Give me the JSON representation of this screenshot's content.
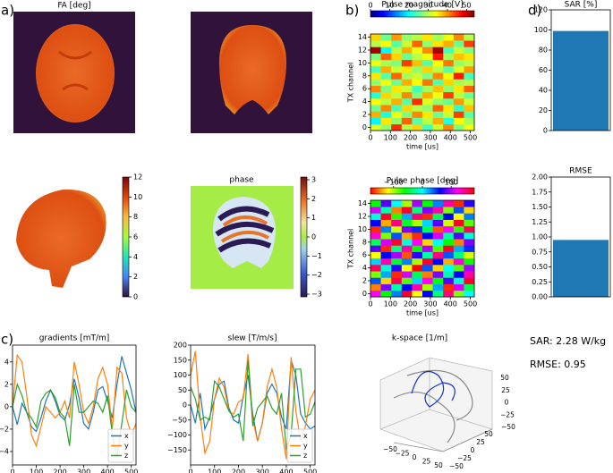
{
  "panel_labels": [
    "a)",
    "b)",
    "c)",
    "d)"
  ],
  "annotations": [
    "SAR:  2.28 W/kg",
    "RMSE:  0.95"
  ],
  "chart_data": [
    {
      "type": "image",
      "title": "FA [deg]",
      "colorbar_lim": [
        0,
        12
      ],
      "colorbar_ticks": [
        0,
        2,
        4,
        6,
        8,
        10,
        12
      ],
      "colormap": "turbo"
    },
    {
      "type": "image",
      "title": "phase",
      "colorbar_lim": [
        -3.14,
        3.14
      ],
      "colormap": "phase",
      "colorbar_ticks": [
        {
          "value": -3,
          "label": "−3"
        },
        {
          "value": -2,
          "label": "−2"
        },
        {
          "value": -1,
          "label": "−1"
        },
        0,
        1,
        2,
        3
      ]
    },
    {
      "type": "heatmap",
      "title": "Pulse magnitude [V]",
      "xlabel": "time [us]",
      "ylabel": "TX channel",
      "colormap": "jet",
      "colorbar_lim": [
        0,
        54
      ],
      "colorbar_ticks": [
        0,
        10,
        20,
        30,
        40,
        50
      ],
      "xlim": [
        0,
        520
      ],
      "xticks": [
        0,
        100,
        200,
        300,
        400,
        500
      ],
      "ylim": [
        -0.5,
        14.5
      ],
      "yticks": [
        0,
        2,
        4,
        6,
        8,
        10,
        12,
        14
      ],
      "values": [
        [
          32,
          28,
          45,
          30,
          36,
          24,
          31,
          40,
          27,
          33
        ],
        [
          20,
          35,
          28,
          42,
          25,
          30,
          38,
          22,
          34,
          29
        ],
        [
          38,
          22,
          33,
          27,
          40,
          35,
          26,
          31,
          44,
          25
        ],
        [
          26,
          40,
          24,
          36,
          30,
          28,
          42,
          35,
          23,
          37
        ],
        [
          34,
          30,
          38,
          25,
          45,
          32,
          28,
          26,
          39,
          31
        ],
        [
          22,
          36,
          30,
          40,
          27,
          38,
          33,
          44,
          30,
          26
        ],
        [
          40,
          27,
          35,
          31,
          24,
          29,
          37,
          28,
          35,
          42
        ],
        [
          28,
          33,
          26,
          38,
          34,
          41,
          25,
          36,
          29,
          30
        ],
        [
          35,
          25,
          42,
          29,
          31,
          27,
          40,
          33,
          46,
          24
        ],
        [
          24,
          38,
          31,
          35,
          28,
          36,
          30,
          25,
          32,
          39
        ],
        [
          33,
          29,
          27,
          44,
          37,
          25,
          34,
          41,
          28,
          30
        ],
        [
          27,
          42,
          36,
          26,
          30,
          33,
          46,
          29,
          37,
          35
        ],
        [
          52,
          20,
          30,
          38,
          33,
          40,
          52,
          24,
          31,
          27
        ],
        [
          30,
          34,
          25,
          31,
          42,
          28,
          35,
          38,
          26,
          44
        ],
        [
          36,
          26,
          39,
          28,
          30,
          35,
          29,
          33,
          40,
          30
        ]
      ]
    },
    {
      "type": "heatmap",
      "title": "Pulse phase [deg]",
      "xlabel": "time [us]",
      "ylabel": "TX channel",
      "colormap": "hsv",
      "colorbar_lim": [
        -180,
        180
      ],
      "colorbar_ticks": [
        {
          "value": -100,
          "label": "−100"
        },
        0,
        100
      ],
      "xlim": [
        0,
        520
      ],
      "xticks": [
        0,
        100,
        200,
        300,
        400,
        500
      ],
      "ylim": [
        -0.5,
        14.5
      ],
      "yticks": [
        0,
        2,
        4,
        6,
        8,
        10,
        12,
        14
      ],
      "values": [
        [
          120,
          -60,
          30,
          170,
          -120,
          60,
          -30,
          150,
          -90,
          0
        ],
        [
          -150,
          90,
          -20,
          60,
          140,
          -100,
          20,
          -170,
          110,
          -40
        ],
        [
          40,
          -130,
          160,
          -80,
          10,
          120,
          -60,
          80,
          -10,
          170
        ],
        [
          -90,
          20,
          -170,
          110,
          -40,
          -150,
          90,
          -20,
          60,
          140
        ],
        [
          160,
          -10,
          70,
          -120,
          180,
          40,
          -130,
          0,
          -80,
          100
        ],
        [
          10,
          140,
          -50,
          30,
          -100,
          170,
          60,
          -140,
          130,
          -60
        ],
        [
          -120,
          60,
          100,
          -160,
          70,
          -20,
          150,
          40,
          -30,
          -110
        ],
        [
          80,
          -170,
          -30,
          140,
          -60,
          100,
          -80,
          170,
          20,
          50
        ],
        [
          -40,
          110,
          170,
          -10,
          120,
          -130,
          0,
          -60,
          -150,
          90
        ],
        [
          130,
          -90,
          40,
          -140,
          -170,
          60,
          110,
          -20,
          80,
          -10
        ],
        [
          -170,
          30,
          -110,
          90,
          50,
          -40,
          -160,
          120,
          -70,
          160
        ],
        [
          60,
          -140,
          150,
          -50,
          -100,
          10,
          80,
          -110,
          170,
          -80
        ],
        [
          -10,
          170,
          -70,
          20,
          150,
          -170,
          -40,
          60,
          -120,
          30
        ],
        [
          110,
          -20,
          -150,
          170,
          -30,
          90,
          140,
          -90,
          40,
          -130
        ],
        [
          -60,
          80,
          0,
          -100,
          100,
          -60,
          30,
          140,
          -170,
          70
        ]
      ]
    },
    {
      "type": "bar",
      "title": "SAR [%]",
      "values": [
        99
      ],
      "color": "#1f77b4",
      "ylim": [
        0,
        120
      ],
      "yticks": [
        0,
        20,
        40,
        60,
        80,
        100,
        120
      ]
    },
    {
      "type": "bar",
      "title": "RMSE",
      "values": [
        0.95
      ],
      "color": "#1f77b4",
      "ylim": [
        0,
        2
      ],
      "yticks": [
        {
          "value": 0,
          "label": "0.00"
        },
        {
          "value": 0.25,
          "label": "0.25"
        },
        {
          "value": 0.5,
          "label": "0.50"
        },
        {
          "value": 0.75,
          "label": "0.75"
        },
        {
          "value": 1,
          "label": "1.00"
        },
        {
          "value": 1.25,
          "label": "1.25"
        },
        {
          "value": 1.5,
          "label": "1.50"
        },
        {
          "value": 1.75,
          "label": "1.75"
        },
        {
          "value": 2,
          "label": "2.00"
        }
      ]
    },
    {
      "type": "line",
      "title": "gradients [mT/m]",
      "xlim": [
        0,
        520
      ],
      "xticks": [
        0,
        100,
        200,
        300,
        400,
        500
      ],
      "ylim": [
        -5.2,
        5.5
      ],
      "yticks": [
        {
          "value": -4,
          "label": "−4"
        },
        {
          "value": -2,
          "label": "−2"
        },
        0,
        2,
        4
      ],
      "legend": "lower right",
      "x": [
        0,
        20,
        40,
        60,
        80,
        100,
        120,
        140,
        160,
        180,
        200,
        220,
        240,
        260,
        280,
        300,
        320,
        340,
        360,
        380,
        400,
        420,
        440,
        460,
        480,
        500,
        520
      ],
      "series": [
        {
          "name": "x",
          "color": "#1f77b4",
          "values": [
            0,
            -1.6,
            0.3,
            -0.5,
            -1.8,
            -2.2,
            -1,
            0.5,
            1.5,
            0.5,
            -0.8,
            -1.2,
            0.2,
            2.5,
            0.8,
            -1.5,
            -2,
            -0.5,
            1.5,
            1.8,
            0.5,
            -1,
            2,
            4.5,
            3,
            1.5,
            -0.5
          ]
        },
        {
          "name": "y",
          "color": "#ff7f0e",
          "values": [
            0,
            4.6,
            4,
            1,
            -2.5,
            -3.5,
            -1.8,
            0,
            -0.5,
            -1,
            -0.5,
            0.5,
            -1,
            4,
            2,
            -0.5,
            -1.5,
            0,
            2.5,
            3.5,
            2,
            -2,
            3.5,
            3,
            -1,
            -2.5,
            -1.5
          ]
        },
        {
          "name": "z",
          "color": "#2ca02c",
          "values": [
            0,
            2,
            1,
            -0.5,
            -1,
            -1.8,
            0.5,
            1.2,
            1.5,
            0.8,
            -0.5,
            -1,
            -3.5,
            2,
            -0.5,
            -0.5,
            0,
            0.5,
            0.3,
            -0.5,
            1,
            -2.5,
            -4.5,
            -1.5,
            1.5,
            0,
            -0.5
          ]
        }
      ]
    },
    {
      "type": "line",
      "title": "slew [T/m/s]",
      "xlim": [
        0,
        520
      ],
      "xticks": [
        0,
        100,
        200,
        300,
        400,
        500
      ],
      "ylim": [
        -200,
        200
      ],
      "yticks": [
        {
          "value": -150,
          "label": "−150"
        },
        {
          "value": -100,
          "label": "−100"
        },
        {
          "value": -50,
          "label": "−50"
        },
        0,
        50,
        100,
        150,
        200
      ],
      "legend": "lower right",
      "x": [
        0,
        20,
        40,
        60,
        80,
        100,
        120,
        140,
        160,
        180,
        200,
        220,
        240,
        260,
        280,
        300,
        320,
        340,
        360,
        380,
        400,
        420,
        440,
        460,
        480,
        500,
        520
      ],
      "series": [
        {
          "name": "x",
          "color": "#1f77b4",
          "values": [
            0,
            -60,
            40,
            -80,
            -40,
            20,
            70,
            80,
            -10,
            -50,
            -60,
            30,
            100,
            -30,
            -120,
            -60,
            40,
            70,
            40,
            -40,
            -80,
            150,
            100,
            -30,
            -60,
            -80,
            -70
          ]
        },
        {
          "name": "y",
          "color": "#ff7f0e",
          "values": [
            100,
            180,
            -40,
            -160,
            -120,
            20,
            90,
            60,
            -20,
            -30,
            10,
            20,
            170,
            -50,
            -120,
            -60,
            60,
            120,
            60,
            -80,
            -180,
            160,
            -20,
            -120,
            -70,
            20,
            50
          ]
        },
        {
          "name": "z",
          "color": "#2ca02c",
          "values": [
            60,
            20,
            -50,
            -40,
            -50,
            80,
            60,
            20,
            -20,
            -40,
            -30,
            -120,
            150,
            -70,
            -10,
            10,
            30,
            -10,
            -30,
            40,
            -150,
            -100,
            120,
            120,
            -40,
            -30,
            10
          ]
        }
      ]
    },
    {
      "type": "line3d",
      "title": "k-space [1/m]",
      "xticks": [
        {
          "value": -50,
          "label": "−50"
        },
        {
          "value": -25,
          "label": "−25"
        },
        0,
        25,
        50
      ],
      "yticks": [
        {
          "value": -50,
          "label": "−50"
        },
        {
          "value": -25,
          "label": "−25"
        },
        0,
        25,
        50
      ],
      "zticks": [
        {
          "value": -50,
          "label": "−50"
        },
        {
          "value": -25,
          "label": "−25"
        },
        0,
        25,
        50
      ]
    }
  ]
}
